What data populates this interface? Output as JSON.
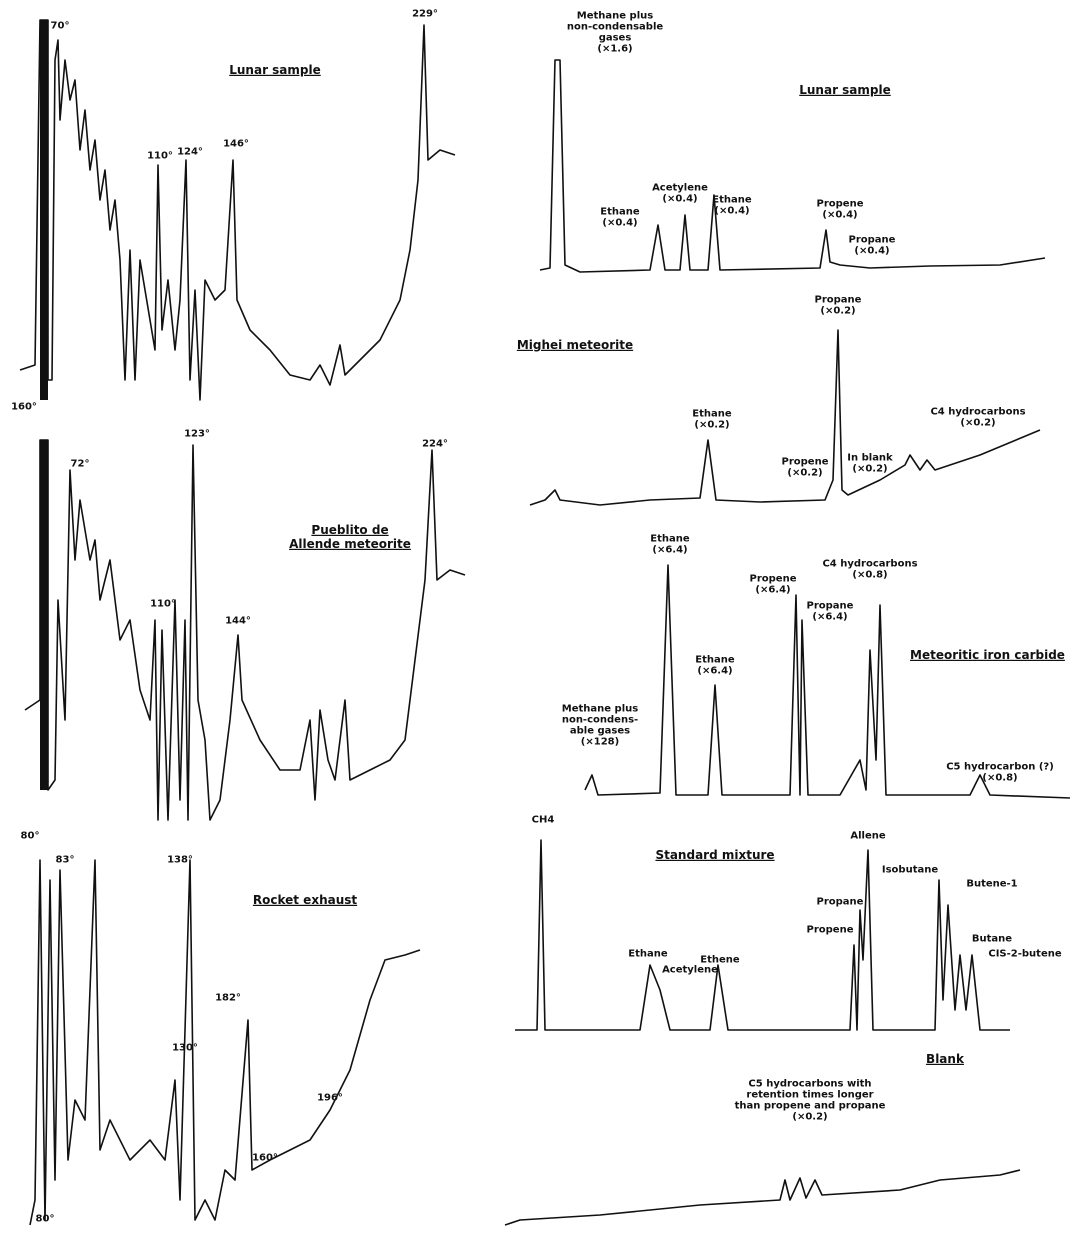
{
  "left_panels": [
    {
      "title": [
        "Lunar sample"
      ],
      "labels": [
        [
          "70°"
        ],
        [
          "229°"
        ],
        [
          "110°"
        ],
        [
          "124°"
        ],
        [
          "146°"
        ],
        [
          "160°"
        ]
      ]
    },
    {
      "title": [
        "Pueblito de",
        "Allende meteorite"
      ],
      "labels": [
        [
          "72°"
        ],
        [
          "123°"
        ],
        [
          "224°"
        ],
        [
          "110°"
        ],
        [
          "144°"
        ],
        [
          "80°"
        ]
      ]
    },
    {
      "title": [
        "Rocket exhaust"
      ],
      "labels": [
        [
          "83°"
        ],
        [
          "138°"
        ],
        [
          "130°"
        ],
        [
          "182°"
        ],
        [
          "160°"
        ],
        [
          "196°"
        ],
        [
          "80°"
        ]
      ]
    }
  ],
  "right_panels": [
    {
      "title": [
        "Lunar sample"
      ],
      "labels": [
        [
          "Methane plus",
          "non-condensable",
          "gases",
          "(×1.6)"
        ],
        [
          "Ethane",
          "(×0.4)"
        ],
        [
          "Acetylene",
          "(×0.4)"
        ],
        [
          "Ethane",
          "(×0.4)"
        ],
        [
          "Propene",
          "(×0.4)"
        ],
        [
          "Propane",
          "(×0.4)"
        ]
      ]
    },
    {
      "title": [
        "Mighei meteorite"
      ],
      "labels": [
        [
          "Propane",
          "(×0.2)"
        ],
        [
          "Ethane",
          "(×0.2)"
        ],
        [
          "Propene",
          "(×0.2)"
        ],
        [
          "In blank",
          "(×0.2)"
        ],
        [
          "C4 hydrocarbons",
          "(×0.2)"
        ]
      ]
    },
    {
      "title": [
        "Meteoritic iron carbide"
      ],
      "labels": [
        [
          "Ethane",
          "(×6.4)"
        ],
        [
          "Propene",
          "(×6.4)"
        ],
        [
          "C4 hydrocarbons",
          "(×0.8)"
        ],
        [
          "Propane",
          "(×6.4)"
        ],
        [
          "Ethane",
          "(×6.4)"
        ],
        [
          "Methane plus",
          "non-condens-",
          "able gases",
          "(×128)"
        ],
        [
          "C5 hydrocarbon (?)",
          "(×0.8)"
        ]
      ]
    },
    {
      "title": [
        "Standard mixture"
      ],
      "labels": [
        [
          "CH4"
        ],
        [
          "Allene"
        ],
        [
          "Isobutane"
        ],
        [
          "Butene-1"
        ],
        [
          "Propane"
        ],
        [
          "Propene"
        ],
        [
          "Butane"
        ],
        [
          "CIS-2-butene"
        ],
        [
          "Ethane"
        ],
        [
          "Acetylene"
        ],
        [
          "Ethene"
        ]
      ]
    },
    {
      "title": [
        "Blank"
      ],
      "labels": [
        [
          "C5 hydrocarbons with",
          "retention times longer",
          "than propene and propane",
          "(×0.2)"
        ]
      ]
    }
  ]
}
